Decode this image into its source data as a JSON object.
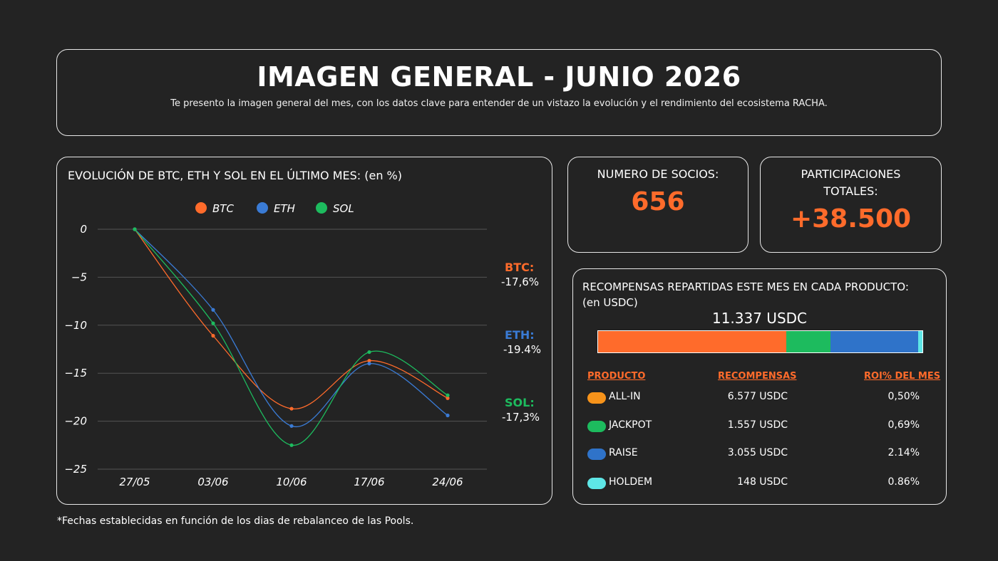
{
  "header": {
    "title": "IMAGEN GENERAL - JUNIO 2026",
    "subtitle": "Te presento la imagen general del mes, con los datos clave para entender de un vistazo la evolución y el rendimiento del ecosistema RACHA."
  },
  "chart_panel": {
    "title": "EVOLUCIÓN DE BTC, ETH Y SOL EN EL ÚLTIMO MES: (en %)",
    "labels": [
      {
        "name": "BTC:",
        "value": "-17,6%",
        "color": "#ff6b2b"
      },
      {
        "name": "ETH:",
        "value": "-19.4%",
        "color": "#3a7bd5"
      },
      {
        "name": "SOL:",
        "value": "-17,3%",
        "color": "#1dbb5e"
      }
    ]
  },
  "chart_data": {
    "type": "line",
    "categories": [
      "27/05",
      "03/06",
      "10/06",
      "17/06",
      "24/06"
    ],
    "yticks": [
      0,
      -5,
      -10,
      -15,
      -20,
      -25
    ],
    "ylim": [
      -25,
      0
    ],
    "grid": true,
    "legend_position": "top",
    "series": [
      {
        "name": "BTC",
        "color": "#ff6b2b",
        "values": [
          0,
          -11.1,
          -18.7,
          -13.7,
          -17.6
        ]
      },
      {
        "name": "ETH",
        "color": "#3a7bd5",
        "values": [
          0,
          -8.4,
          -20.5,
          -14.0,
          -19.4
        ]
      },
      {
        "name": "SOL",
        "color": "#1dbb5e",
        "values": [
          0,
          -9.8,
          -22.5,
          -12.8,
          -17.3
        ]
      }
    ]
  },
  "members": {
    "label": "NUMERO DE SOCIOS:",
    "value": "656"
  },
  "participations": {
    "label": "PARTICIPACIONES TOTALES:",
    "value": "+38.500"
  },
  "rewards": {
    "title": "RECOMPENSAS REPARTIDAS ESTE MES EN CADA PRODUCTO: (en USDC)",
    "total": "11.337 USDC",
    "headers": {
      "product": "PRODUCTO",
      "rewards": "RECOMPENSAS",
      "roi": "ROI% DEL MES"
    },
    "rows": [
      {
        "name": "ALL-IN",
        "amount": "6.577 USDC",
        "roi": "0,50%",
        "color": "#f7931a",
        "value": 6577
      },
      {
        "name": "JACKPOT",
        "amount": "1.557 USDC",
        "roi": "0,69%",
        "color": "#1dbb5e",
        "value": 1557
      },
      {
        "name": "RAISE",
        "amount": "3.055 USDC",
        "roi": "2.14%",
        "color": "#2f73c9",
        "value": 3055
      },
      {
        "name": "HOLDEM",
        "amount": "148 USDC",
        "roi": "0.86%",
        "color": "#5ee6e6",
        "value": 148
      }
    ],
    "bar_colors": [
      "#ff6b2b",
      "#1dbb5e",
      "#2f73c9",
      "#5ee6e6"
    ]
  },
  "footnote": "*Fechas establecidas en función de los dias de rebalanceo de las Pools."
}
